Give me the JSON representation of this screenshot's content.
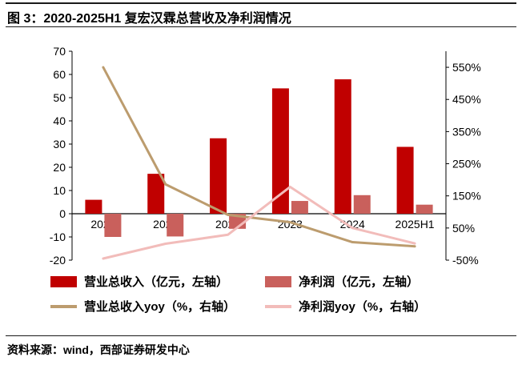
{
  "page": {
    "title": "图 3：2020-2025H1 复宏汉霖总营收及净利润情况",
    "source": "资料来源：wind，西部证券研发中心"
  },
  "chart_data": {
    "type": "bar",
    "subtype": "combo-bar-line-dual-axis",
    "title": "2020-2025H1 复宏汉霖总营收及净利润情况",
    "categories": [
      "2020",
      "2021",
      "2022",
      "2023",
      "2024",
      "2025H1"
    ],
    "series": [
      {
        "name": "营业总收入（亿元，左轴）",
        "type": "bar",
        "axis": "left",
        "color": "#C00000",
        "values": [
          6.0,
          17.2,
          32.5,
          54.0,
          57.9,
          28.8
        ]
      },
      {
        "name": "净利润（亿元，左轴）",
        "type": "bar",
        "axis": "left",
        "color": "#C9605C",
        "values": [
          -10.0,
          -9.8,
          -6.5,
          5.5,
          8.0,
          3.9
        ]
      },
      {
        "name": "营业总收入yoy（%，右轴）",
        "type": "line",
        "axis": "right",
        "color": "#BC9C6E",
        "values": [
          550,
          186,
          91,
          68,
          6,
          -7
        ]
      },
      {
        "name": "净利润yoy（%，右轴）",
        "type": "line",
        "axis": "right",
        "color": "#F2BCBA",
        "values": [
          -45,
          1,
          29,
          178,
          50,
          2
        ]
      }
    ],
    "left_axis": {
      "min": -20,
      "max": 70,
      "tick_step": 10,
      "tick_labels": [
        "70",
        "60",
        "50",
        "40",
        "30",
        "20",
        "10",
        "0",
        "-10",
        "-20"
      ]
    },
    "right_axis": {
      "min": -50,
      "max": 600,
      "ticks": [
        550,
        450,
        350,
        250,
        150,
        50,
        -50
      ],
      "suffix": "%",
      "tick_labels": [
        "550%",
        "450%",
        "350%",
        "250%",
        "150%",
        "50%",
        "-50%"
      ]
    },
    "legend_position": "bottom",
    "grid": false
  }
}
